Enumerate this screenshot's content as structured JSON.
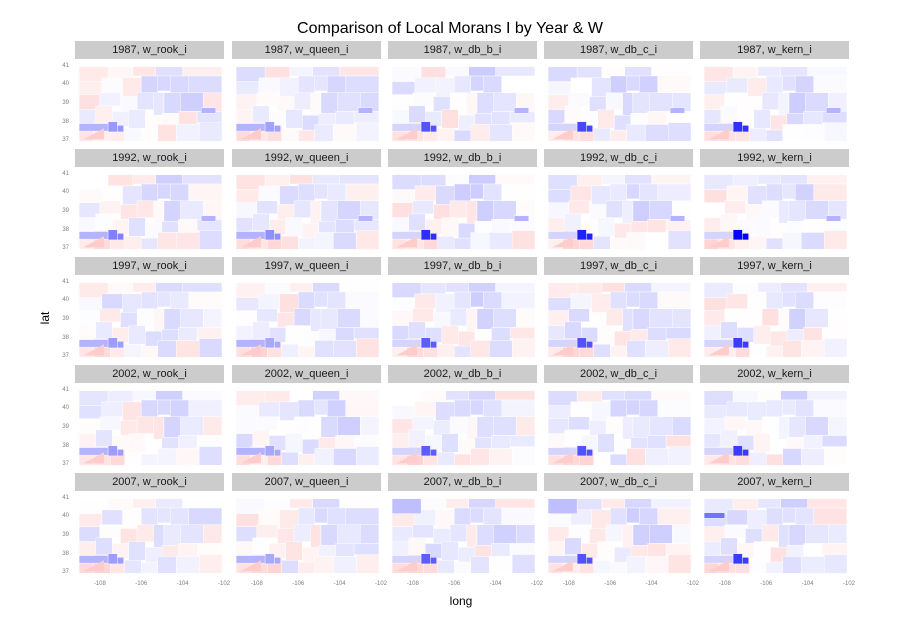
{
  "chart_data": {
    "type": "choropleth-facet",
    "title": "Comparison of Local Morans I by Year & W",
    "xlabel": "long",
    "ylabel": "lat",
    "xlim": [
      -109.2,
      -102
    ],
    "ylim": [
      36.8,
      41.2
    ],
    "x_ticks": [
      "-108",
      "-106",
      "-104",
      "-102"
    ],
    "y_ticks": [
      "41",
      "40",
      "39",
      "38",
      "37"
    ],
    "years": [
      "1987",
      "1992",
      "1997",
      "2002",
      "2007"
    ],
    "weights": [
      "w_rook_i",
      "w_queen_i",
      "w_db_b_i",
      "w_db_c_i",
      "w_kern_i"
    ],
    "panels": [
      {
        "label": "1987, w_rook_i",
        "year": "1987",
        "weight": "w_rook_i"
      },
      {
        "label": "1987, w_queen_i",
        "year": "1987",
        "weight": "w_queen_i"
      },
      {
        "label": "1987, w_db_b_i",
        "year": "1987",
        "weight": "w_db_b_i"
      },
      {
        "label": "1987, w_db_c_i",
        "year": "1987",
        "weight": "w_db_c_i"
      },
      {
        "label": "1987, w_kern_i",
        "year": "1987",
        "weight": "w_kern_i"
      },
      {
        "label": "1992, w_rook_i",
        "year": "1992",
        "weight": "w_rook_i"
      },
      {
        "label": "1992, w_queen_i",
        "year": "1992",
        "weight": "w_queen_i"
      },
      {
        "label": "1992, w_db_b_i",
        "year": "1992",
        "weight": "w_db_b_i"
      },
      {
        "label": "1992, w_db_c_i",
        "year": "1992",
        "weight": "w_db_c_i"
      },
      {
        "label": "1992, w_kern_i",
        "year": "1992",
        "weight": "w_kern_i"
      },
      {
        "label": "1997, w_rook_i",
        "year": "1997",
        "weight": "w_rook_i"
      },
      {
        "label": "1997, w_queen_i",
        "year": "1997",
        "weight": "w_queen_i"
      },
      {
        "label": "1997, w_db_b_i",
        "year": "1997",
        "weight": "w_db_b_i"
      },
      {
        "label": "1997, w_db_c_i",
        "year": "1997",
        "weight": "w_db_c_i"
      },
      {
        "label": "1997, w_kern_i",
        "year": "1997",
        "weight": "w_kern_i"
      },
      {
        "label": "2002, w_rook_i",
        "year": "2002",
        "weight": "w_rook_i"
      },
      {
        "label": "2002, w_queen_i",
        "year": "2002",
        "weight": "w_queen_i"
      },
      {
        "label": "2002, w_db_b_i",
        "year": "2002",
        "weight": "w_db_b_i"
      },
      {
        "label": "2002, w_db_c_i",
        "year": "2002",
        "weight": "w_db_c_i"
      },
      {
        "label": "2002, w_kern_i",
        "year": "2002",
        "weight": "w_kern_i"
      },
      {
        "label": "2007, w_rook_i",
        "year": "2007",
        "weight": "w_rook_i"
      },
      {
        "label": "2007, w_queen_i",
        "year": "2007",
        "weight": "w_queen_i"
      },
      {
        "label": "2007, w_db_b_i",
        "year": "2007",
        "weight": "w_db_b_i"
      },
      {
        "label": "2007, w_db_c_i",
        "year": "2007",
        "weight": "w_db_c_i"
      },
      {
        "label": "2007, w_kern_i",
        "year": "2007",
        "weight": "w_kern_i"
      }
    ],
    "color_scale": {
      "low": "#0000ff",
      "mid": "#ffffff",
      "high": "#ff0000"
    },
    "grid": false,
    "legend": "none"
  }
}
